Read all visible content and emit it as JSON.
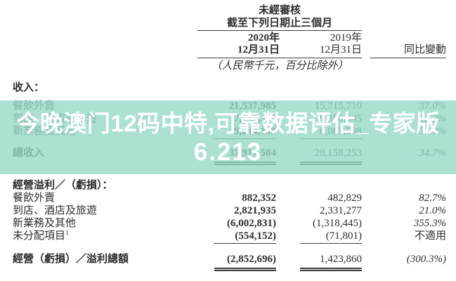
{
  "overlay": {
    "line1": "今晚澳门12码中特,可靠数据评估_专家版",
    "line2": "6.213",
    "band_color": "rgba(150,216,200,0.8)",
    "text_color": "#ffffff"
  },
  "header": {
    "unaudited": "未經審核",
    "period": "截至下列日期止三個月",
    "col_2020_year": "2020年",
    "col_2020_date": "12月31日",
    "col_2019_year": "2019年",
    "col_2019_date": "12月31日",
    "col_yoy": "同比變動",
    "unit_note": "（人民幣千元，百分比除外）"
  },
  "revenue_section": {
    "title": "收入：",
    "rows": [
      {
        "label": "餐飲外賣",
        "v2020": "21,537,985",
        "v2019": "15,715,710",
        "yoy": "37.0%"
      },
      {
        "label": "到店、酒店及旅遊",
        "v2020": "7,135,360",
        "v2019": "6,356,945",
        "yoy": "12.2%"
      },
      {
        "label": "新業務及其他",
        "v2020": "9,244,159",
        "v2019": "6,085,598",
        "yoy": "51.9%"
      }
    ],
    "total": {
      "label": "總收入",
      "v2020": "37,917,504",
      "v2019": "28,158,253",
      "yoy": "34.7%"
    }
  },
  "profit_section": {
    "title": "經營溢利／（虧損）：",
    "rows": [
      {
        "label": "餐飲外賣",
        "footnote": "",
        "v2020": "882,352",
        "v2019": "482,829",
        "yoy": "82.7%"
      },
      {
        "label": "到店、酒店及旅遊",
        "footnote": "",
        "v2020": "2,821,935",
        "v2019": "2,331,277",
        "yoy": "21.0%"
      },
      {
        "label": "新業務及其他",
        "footnote": "",
        "v2020": "(6,002,831)",
        "v2019": "(1,318,445)",
        "yoy": "355.3%"
      },
      {
        "label": "未分配項目",
        "footnote": "1",
        "v2020": "(554,152)",
        "v2019": "(71,801)",
        "yoy": "不適用"
      }
    ],
    "total": {
      "label": "經營（虧損）／溢利總額",
      "v2020": "(2,852,696)",
      "v2019": "1,423,860",
      "yoy": "(300.3%)"
    }
  }
}
